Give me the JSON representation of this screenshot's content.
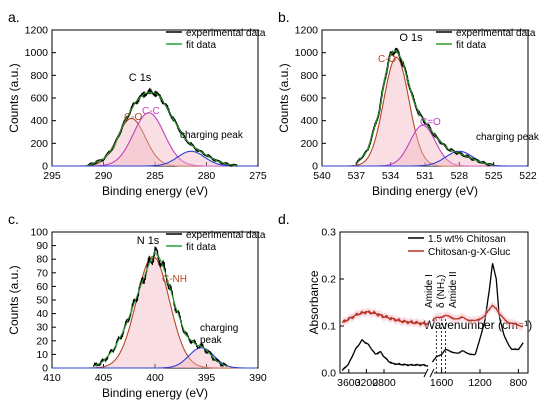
{
  "colors": {
    "experimental": "#000000",
    "fit": "#2ca02c",
    "co": "#b5472a",
    "cc": "#c040c0",
    "charging": "#2a3fd0",
    "shade": "#f2b8c4",
    "modified": "#b83226"
  },
  "chart_data": [
    {
      "panel": "a.",
      "type": "line",
      "title": "C 1s",
      "xlabel": "Binding energy (eV)",
      "ylabel": "Counts (a.u.)",
      "xlim": [
        295,
        275
      ],
      "ylim": [
        0,
        1200
      ],
      "xticks": [
        295,
        290,
        285,
        280,
        275
      ],
      "yticks": [
        0,
        200,
        400,
        600,
        800,
        1000,
        1200
      ],
      "legend": [
        "experimental data",
        "fit data"
      ],
      "legend_position": "top-right",
      "annotations": [
        "C-O",
        "C-C",
        "charging peak"
      ],
      "series": [
        {
          "name": "experimental data",
          "x": [
            291.5,
            290,
            289,
            288,
            287,
            286.5,
            286,
            285.5,
            285,
            284.5,
            284,
            283,
            282,
            281,
            280,
            279,
            278,
            277
          ],
          "y": [
            5,
            60,
            170,
            380,
            550,
            600,
            640,
            650,
            645,
            610,
            540,
            380,
            230,
            150,
            95,
            45,
            15,
            3
          ]
        },
        {
          "name": "fit data",
          "x": [
            291.5,
            290,
            289,
            288,
            287,
            286.5,
            286,
            285.5,
            285,
            284.5,
            284,
            283,
            282,
            281,
            280,
            279,
            278,
            277
          ],
          "y": [
            5,
            60,
            170,
            380,
            550,
            600,
            640,
            650,
            645,
            610,
            540,
            380,
            230,
            150,
            95,
            45,
            15,
            3
          ]
        },
        {
          "name": "C-O",
          "peak": [
            287.3,
            420,
            1.35
          ]
        },
        {
          "name": "C-C",
          "peak": [
            285.6,
            470,
            1.5
          ]
        },
        {
          "name": "charging peak",
          "peak": [
            281.5,
            130,
            1.3
          ]
        }
      ]
    },
    {
      "panel": "b.",
      "type": "line",
      "title": "O 1s",
      "xlabel": "Binding energy (eV)",
      "ylabel": "Counts (a.u.)",
      "xlim": [
        540,
        522
      ],
      "ylim": [
        0,
        1200
      ],
      "xticks": [
        540,
        537,
        534,
        531,
        528,
        525,
        522
      ],
      "yticks": [
        0,
        200,
        400,
        600,
        800,
        1000,
        1200
      ],
      "legend": [
        "experimental data",
        "fit data"
      ],
      "legend_position": "top-right",
      "annotations": [
        "C-O",
        "C=O",
        "charging peak"
      ],
      "series": [
        {
          "name": "experimental data",
          "x": [
            537,
            536,
            535,
            534.5,
            534,
            533.5,
            533,
            532.5,
            532,
            531.5,
            531,
            530,
            529,
            528,
            527,
            526,
            525
          ],
          "y": [
            20,
            140,
            480,
            780,
            990,
            1020,
            930,
            760,
            580,
            460,
            390,
            250,
            150,
            110,
            70,
            30,
            5
          ]
        },
        {
          "name": "fit data",
          "x": [
            537,
            536,
            535,
            534.5,
            534,
            533.5,
            533,
            532.5,
            532,
            531.5,
            531,
            530,
            529,
            528,
            527,
            526,
            525
          ],
          "y": [
            20,
            140,
            480,
            780,
            990,
            1020,
            930,
            760,
            580,
            460,
            390,
            250,
            150,
            110,
            70,
            30,
            5
          ]
        },
        {
          "name": "C-O",
          "peak": [
            533.5,
            960,
            1.1
          ]
        },
        {
          "name": "C=O",
          "peak": [
            531.2,
            360,
            1.1
          ]
        },
        {
          "name": "charging peak",
          "peak": [
            528.0,
            130,
            1.2
          ]
        }
      ]
    },
    {
      "panel": "c.",
      "type": "line",
      "title": "N 1s",
      "xlabel": "Binding energy (eV)",
      "ylabel": "Counts (a.u.)",
      "xlim": [
        410,
        390
      ],
      "ylim": [
        0,
        100
      ],
      "xticks": [
        410,
        405,
        400,
        395,
        390
      ],
      "yticks": [
        0,
        10,
        20,
        30,
        40,
        50,
        60,
        70,
        80,
        90,
        100
      ],
      "legend": [
        "experimental data",
        "fit data"
      ],
      "legend_position": "top-right",
      "annotations": [
        "C-NH",
        "charging peak"
      ],
      "series": [
        {
          "name": "experimental data",
          "x": [
            406,
            405,
            404,
            403,
            402,
            401,
            400.5,
            400,
            399.5,
            399,
            398,
            397,
            396,
            395.5,
            395,
            394,
            393
          ],
          "y": [
            1,
            5,
            14,
            28,
            48,
            68,
            78,
            85,
            80,
            70,
            45,
            24,
            17,
            16,
            13,
            5,
            1
          ]
        },
        {
          "name": "fit data",
          "x": [
            406,
            405,
            404,
            403,
            402,
            401,
            400.5,
            400,
            399.5,
            399,
            398,
            397,
            396,
            395.5,
            395,
            394,
            393
          ],
          "y": [
            1,
            5,
            14,
            28,
            48,
            68,
            78,
            85,
            80,
            70,
            45,
            24,
            17,
            16,
            13,
            5,
            1
          ]
        },
        {
          "name": "C-NH",
          "peak": [
            400.2,
            82,
            1.6
          ]
        },
        {
          "name": "charging peak",
          "peak": [
            395.5,
            15,
            1.2
          ]
        }
      ]
    },
    {
      "panel": "d.",
      "type": "line",
      "xlabel": "Wavenumber (cm⁻¹)",
      "ylabel": "Absorbance",
      "xlim": [
        3800,
        700
      ],
      "ylim": [
        0,
        0.3
      ],
      "axis_break": [
        1800,
        1700
      ],
      "xticks": [
        3600,
        3200,
        2800,
        1600,
        1200,
        800
      ],
      "yticks": [
        0.0,
        0.1,
        0.2,
        0.3
      ],
      "legend": [
        "1.5 wt% Chitosan",
        "Chitosan-g-X-Gluc"
      ],
      "legend_position": "top-right",
      "annotations": [
        "Amide I",
        "δ (NH₂)",
        "Amide II"
      ],
      "series": [
        {
          "name": "1.5 wt% Chitosan",
          "x": [
            3750,
            3600,
            3450,
            3300,
            3150,
            3000,
            2880,
            2800,
            2700,
            2600,
            2400,
            2200,
            1900,
            1800,
            1700,
            1650,
            1600,
            1560,
            1500,
            1420,
            1380,
            1300,
            1250,
            1150,
            1100,
            1070,
            1030,
            1000,
            950,
            900,
            870,
            800,
            750
          ],
          "y": [
            0.005,
            0.02,
            0.05,
            0.07,
            0.06,
            0.04,
            0.045,
            0.035,
            0.025,
            0.02,
            0.018,
            0.017,
            0.017,
            0.015,
            0.022,
            0.035,
            0.04,
            0.05,
            0.045,
            0.042,
            0.047,
            0.04,
            0.038,
            0.11,
            0.18,
            0.235,
            0.2,
            0.12,
            0.08,
            0.06,
            0.05,
            0.05,
            0.065
          ]
        },
        {
          "name": "Chitosan-g-X-Gluc",
          "x": [
            3750,
            3600,
            3400,
            3200,
            3000,
            2800,
            2600,
            2400,
            2200,
            1900,
            1800,
            1700,
            1650,
            1600,
            1560,
            1500,
            1420,
            1380,
            1300,
            1250,
            1150,
            1100,
            1070,
            1030,
            1000,
            950,
            900,
            850,
            800,
            750
          ],
          "y": [
            0.107,
            0.115,
            0.125,
            0.13,
            0.127,
            0.12,
            0.115,
            0.11,
            0.108,
            0.105,
            0.105,
            0.11,
            0.118,
            0.12,
            0.122,
            0.118,
            0.115,
            0.118,
            0.112,
            0.11,
            0.122,
            0.135,
            0.145,
            0.138,
            0.125,
            0.115,
            0.108,
            0.104,
            0.102,
            0.1
          ]
        }
      ]
    }
  ]
}
